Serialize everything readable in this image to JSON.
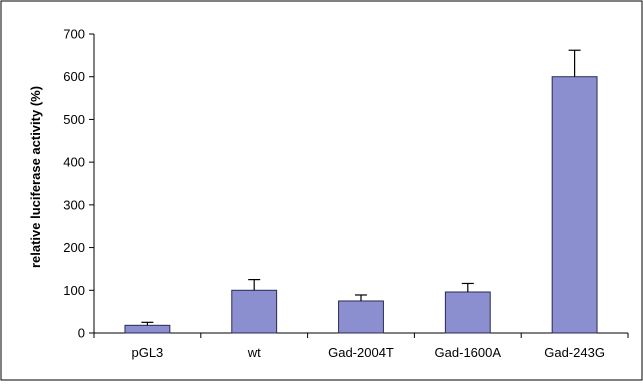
{
  "chart_data": {
    "type": "bar",
    "title": "",
    "xlabel": "",
    "ylabel": "relative luciferase activity (%)",
    "categories": [
      "pGL3",
      "wt",
      "Gad-2004T",
      "Gad-1600A",
      "Gad-243G"
    ],
    "values": [
      18,
      100,
      75,
      96,
      600
    ],
    "error_upper": [
      7,
      25,
      14,
      20,
      62
    ],
    "ylim": [
      0,
      700
    ],
    "yticks": [
      0,
      100,
      200,
      300,
      400,
      500,
      600,
      700
    ],
    "grid": false,
    "legend": "none",
    "colors": {
      "bar_fill": "#8c8fcf",
      "bar_stroke": "#2a2a55",
      "axis": "#000000",
      "frame": "#000000"
    }
  }
}
